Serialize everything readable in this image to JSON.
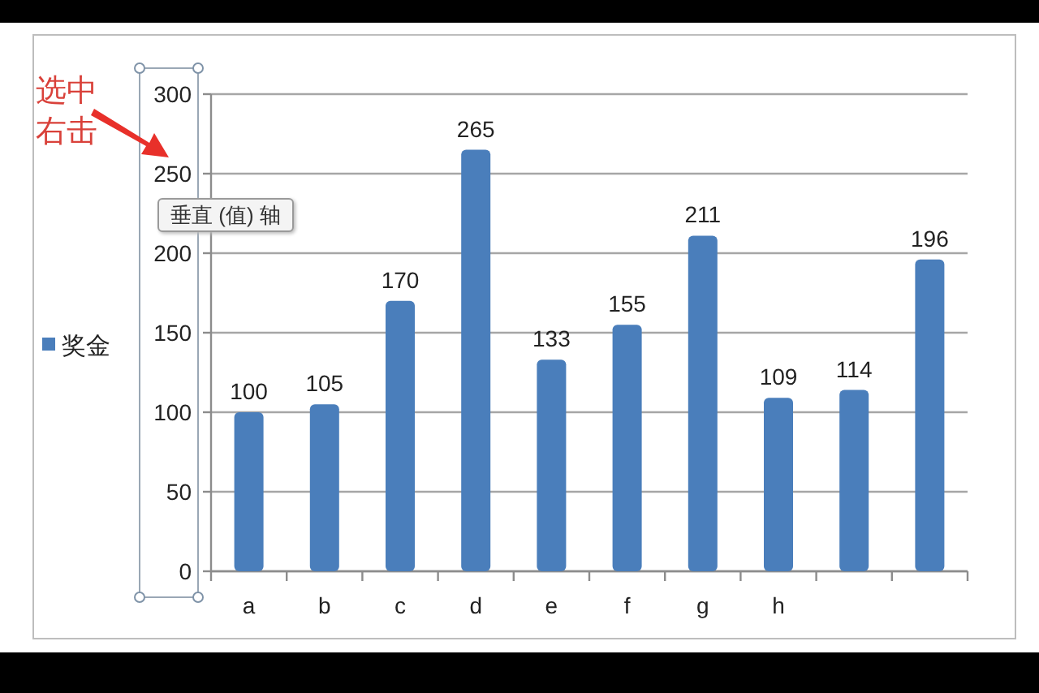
{
  "chart_data": {
    "type": "bar",
    "categories": [
      "a",
      "b",
      "c",
      "d",
      "e",
      "f",
      "g",
      "h",
      null,
      null
    ],
    "series": [
      {
        "name": "奖金",
        "color": "#4a7ebb",
        "values": [
          100,
          105,
          170,
          265,
          133,
          155,
          211,
          109,
          114,
          196
        ]
      }
    ],
    "ylim": [
      0,
      300
    ],
    "yticks": [
      0,
      50,
      100,
      150,
      200,
      250,
      300
    ],
    "grid": "y",
    "legend": "left",
    "data_labels": true,
    "annotations": [
      "选中右击",
      "垂直 (值) 轴"
    ]
  }
}
